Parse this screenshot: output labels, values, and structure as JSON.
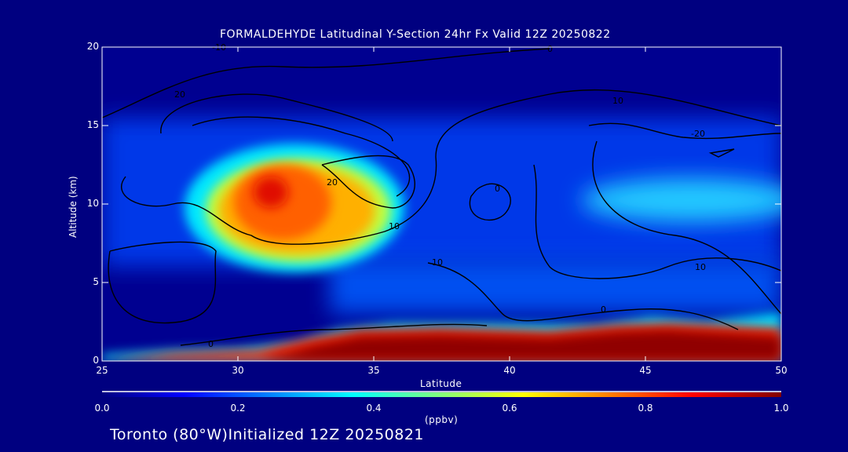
{
  "chart_data": {
    "type": "heatmap",
    "title": "FORMALDEHYDE Latitudinal Y-Section 24hr  Fx Valid 12Z 20250822",
    "xlabel": "Latitude",
    "ylabel": "Altitude (km)",
    "xlim": [
      25,
      50
    ],
    "ylim": [
      0,
      20
    ],
    "x_ticks": [
      "25",
      "30",
      "35",
      "40",
      "45",
      "50"
    ],
    "y_ticks": [
      "0",
      "5",
      "10",
      "15",
      "20"
    ],
    "colorbar": {
      "label": "(ppbv)",
      "range": [
        0.0,
        1.0
      ],
      "ticks": [
        "0.0",
        "0.2",
        "0.4",
        "0.6",
        "0.8",
        "1.0"
      ],
      "colors": [
        "#000080",
        "#0000ff",
        "#00ffff",
        "#ffff00",
        "#ff0000",
        "#800000"
      ]
    },
    "features": [
      {
        "name": "upper-troposphere maximum",
        "lat": 32,
        "alt_km": 9.5,
        "value_ppbv": 0.85
      },
      {
        "name": "boundary-layer maximum",
        "lat_range": [
          35,
          50
        ],
        "alt_km": 0.8,
        "value_ppbv": 1.0
      },
      {
        "name": "northern upper layer",
        "lat_range": [
          43,
          50
        ],
        "alt_km": 10,
        "value_ppbv": 0.4
      }
    ],
    "contour_labels": [
      "-10",
      "0",
      "10",
      "20",
      "-20",
      "10",
      "0",
      "10",
      "20",
      "10",
      "0",
      "0"
    ]
  },
  "footer": "Toronto (80°W)Initialized 12Z 20250821"
}
